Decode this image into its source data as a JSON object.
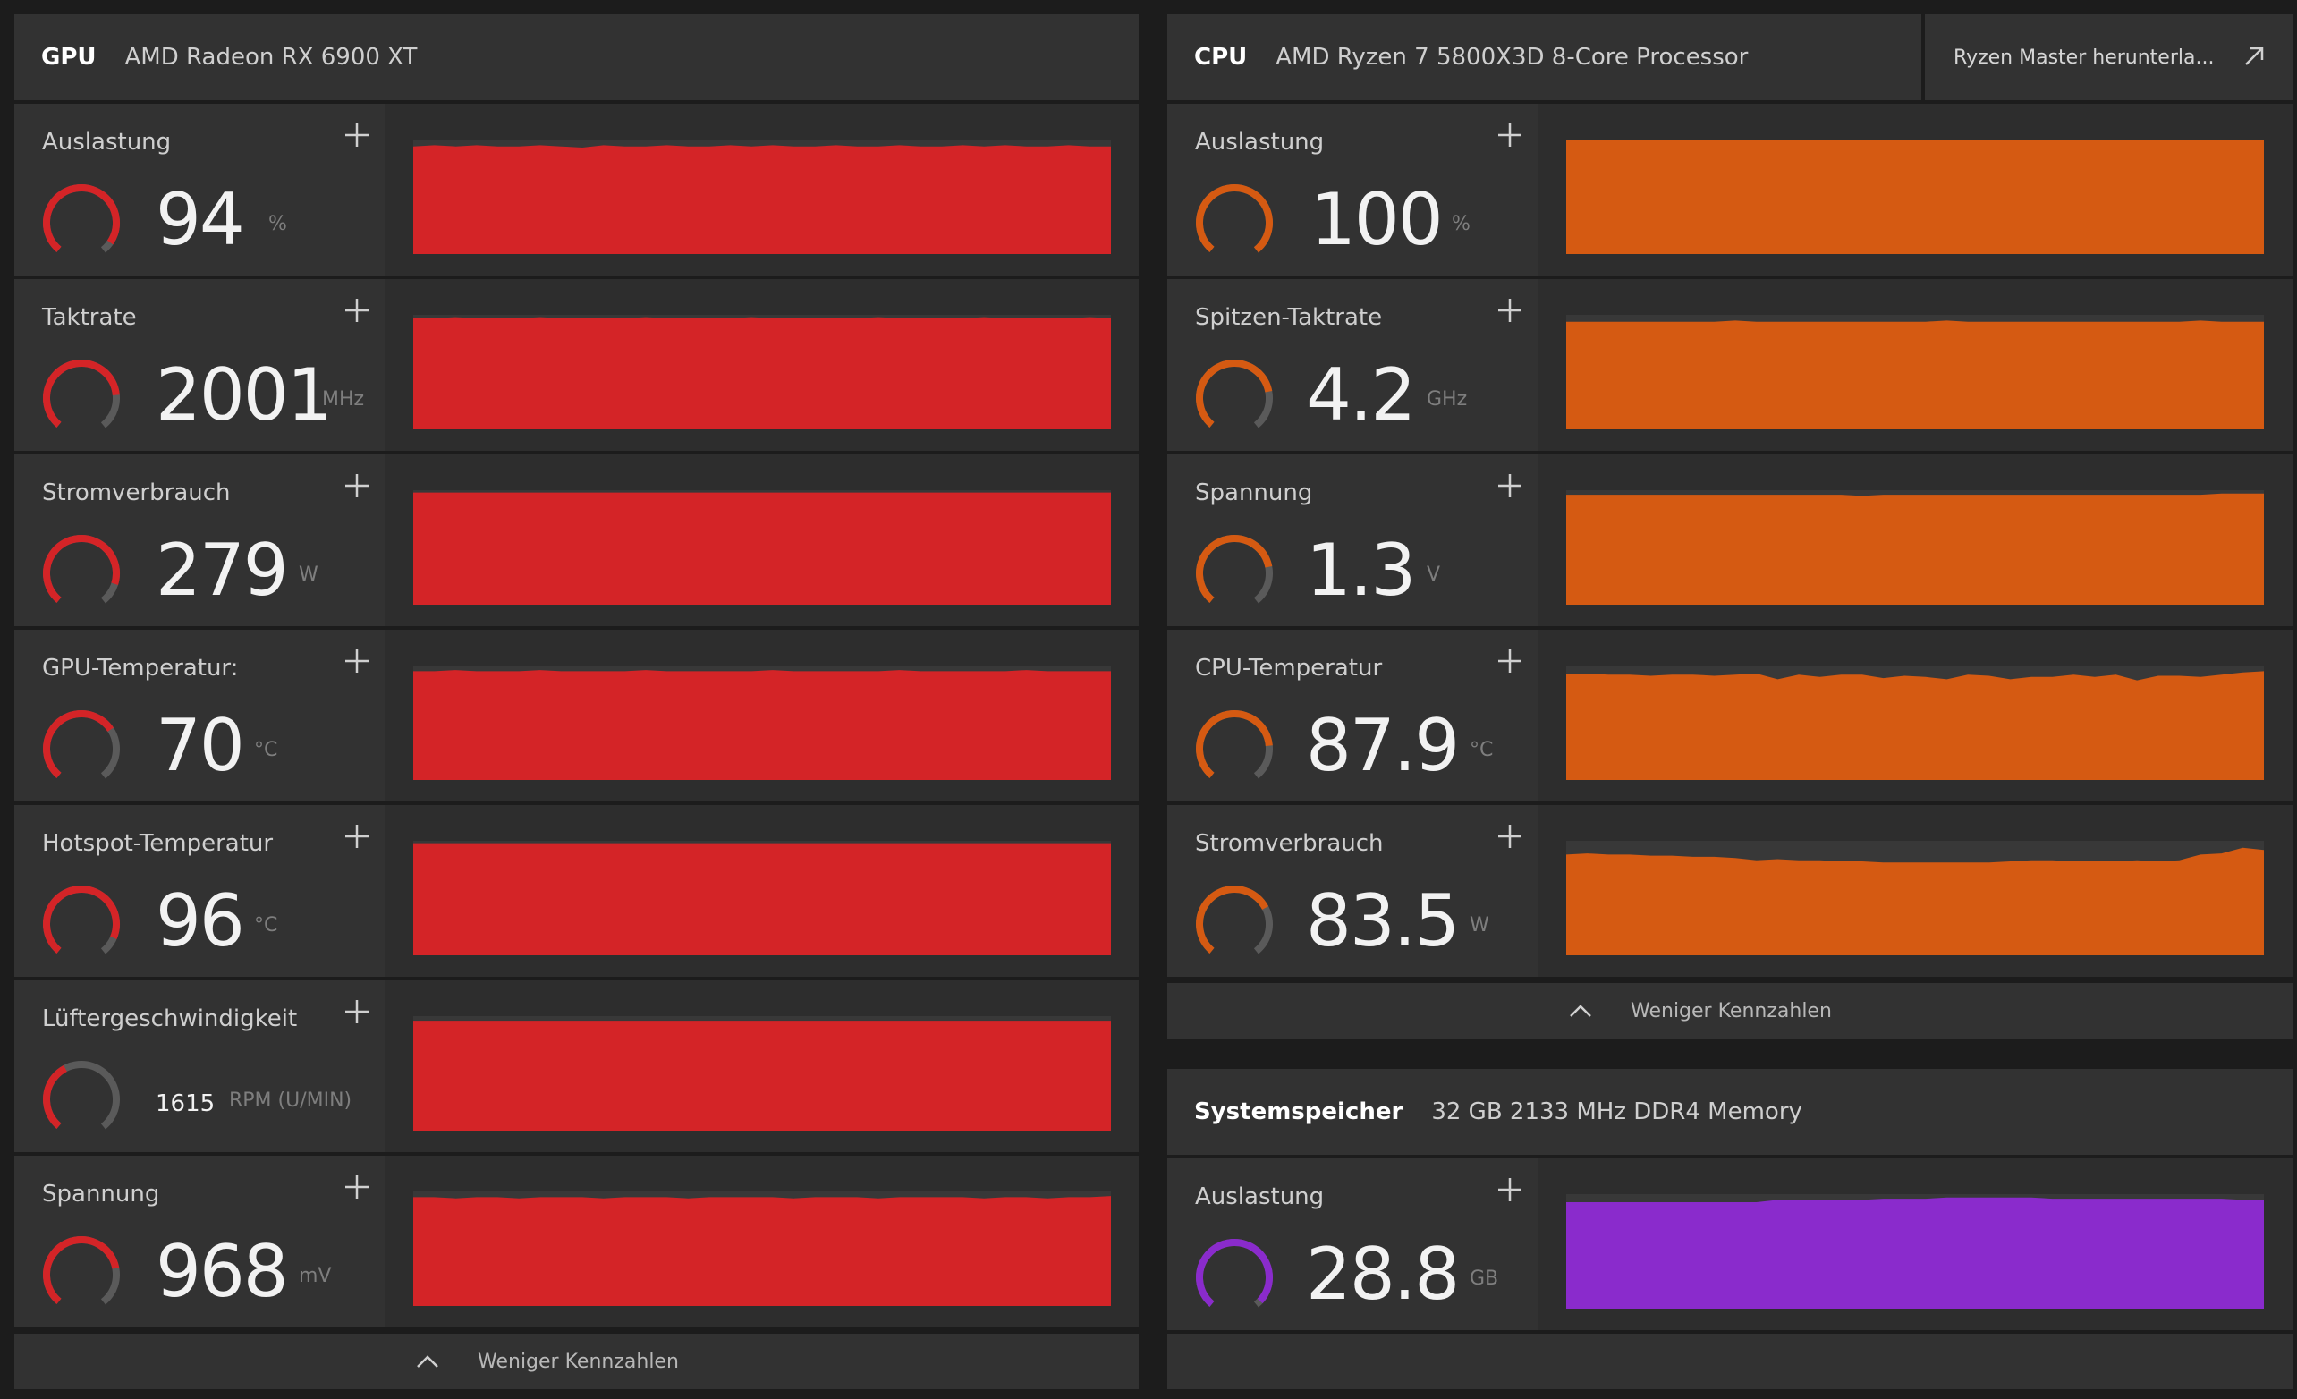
{
  "colors": {
    "gpu": "#d42427",
    "cpu": "#d55a12",
    "memory": "#8a2bcc",
    "track": "#5a5a5a"
  },
  "gpu": {
    "tag": "GPU",
    "name": "AMD Radeon RX 6900 XT",
    "metrics": [
      {
        "label": "Auslastung",
        "value": "94",
        "unit": "%",
        "level": 0.94,
        "history": [
          94,
          95,
          94,
          95,
          94,
          94,
          95,
          94,
          93,
          95,
          94,
          94,
          95,
          94,
          94,
          95,
          94,
          95,
          94,
          94,
          95,
          94,
          94,
          95,
          94,
          94,
          95,
          94,
          95,
          94,
          94,
          95,
          94,
          94
        ]
      },
      {
        "label": "Taktrate",
        "value": "2001",
        "unit": "MHz",
        "level": 0.8,
        "history": [
          97,
          97,
          98,
          97,
          97,
          97,
          98,
          97,
          97,
          97,
          97,
          98,
          97,
          97,
          97,
          97,
          98,
          97,
          97,
          97,
          97,
          97,
          98,
          97,
          97,
          97,
          97,
          98,
          97,
          97,
          97,
          97,
          98,
          97
        ]
      },
      {
        "label": "Stromverbrauch",
        "value": "279",
        "unit": "W",
        "level": 0.88,
        "history": [
          98,
          98,
          98,
          98,
          98,
          98,
          98,
          98,
          98,
          98,
          98,
          98,
          98,
          98,
          98,
          98,
          98,
          98,
          98,
          98,
          98,
          98,
          98,
          98,
          98,
          98,
          98,
          98,
          98,
          98,
          98,
          98,
          98,
          98
        ]
      },
      {
        "label": "GPU-Temperatur:",
        "value": "70",
        "unit": "°C",
        "level": 0.7,
        "history": [
          95,
          95,
          96,
          95,
          95,
          95,
          96,
          95,
          95,
          95,
          95,
          96,
          95,
          95,
          95,
          95,
          95,
          96,
          95,
          95,
          95,
          95,
          95,
          96,
          95,
          95,
          95,
          95,
          95,
          96,
          95,
          95,
          95,
          95
        ]
      },
      {
        "label": "Hotspot-Temperatur",
        "value": "96",
        "unit": "°C",
        "level": 0.9,
        "history": [
          98,
          98,
          98,
          98,
          98,
          98,
          98,
          98,
          98,
          98,
          98,
          98,
          98,
          98,
          98,
          98,
          98,
          98,
          98,
          98,
          98,
          98,
          98,
          98,
          98,
          98,
          98,
          98,
          98,
          98,
          98,
          98,
          98,
          98
        ]
      },
      {
        "label": "Lüftergeschwindigkeit",
        "value": "1615",
        "unit": "RPM (U/MIN)",
        "level": 0.4,
        "history": [
          96,
          96,
          96,
          96,
          96,
          96,
          96,
          96,
          96,
          96,
          96,
          96,
          96,
          96,
          96,
          96,
          96,
          96,
          96,
          96,
          96,
          96,
          96,
          96,
          96,
          96,
          96,
          96,
          96,
          96,
          96,
          96,
          96,
          96
        ]
      },
      {
        "label": "Spannung",
        "value": "968",
        "unit": "mV",
        "level": 0.78,
        "history": [
          95,
          95,
          94,
          95,
          95,
          94,
          95,
          95,
          95,
          94,
          95,
          95,
          95,
          94,
          95,
          95,
          95,
          95,
          94,
          95,
          95,
          95,
          94,
          95,
          95,
          95,
          95,
          94,
          95,
          95,
          94,
          95,
          95,
          96
        ]
      }
    ],
    "footer": "Weniger Kennzahlen"
  },
  "cpu": {
    "tag": "CPU",
    "name": "AMD Ryzen 7 5800X3D 8-Core Processor",
    "external_link": "Ryzen Master herunterla...",
    "metrics": [
      {
        "label": "Auslastung",
        "value": "100",
        "unit": "%",
        "level": 1.0,
        "history": [
          100,
          100,
          100,
          100,
          100,
          100,
          100,
          100,
          100,
          100,
          100,
          100,
          100,
          100,
          100,
          100,
          100,
          100,
          100,
          100,
          100,
          100,
          100,
          100,
          100,
          100,
          100,
          100,
          100,
          100,
          100,
          100,
          100,
          100
        ]
      },
      {
        "label": "Spitzen-Taktrate",
        "value": "4.2",
        "unit": "GHz",
        "level": 0.78,
        "history": [
          94,
          94,
          94,
          94,
          94,
          94,
          94,
          94,
          95,
          94,
          94,
          94,
          94,
          94,
          94,
          94,
          94,
          94,
          95,
          94,
          94,
          94,
          94,
          94,
          94,
          94,
          94,
          94,
          94,
          94,
          95,
          94,
          94,
          94
        ]
      },
      {
        "label": "Spannung",
        "value": "1.3",
        "unit": "V",
        "level": 0.78,
        "history": [
          96,
          96,
          96,
          96,
          96,
          96,
          96,
          96,
          96,
          96,
          96,
          96,
          96,
          96,
          95,
          96,
          96,
          96,
          96,
          96,
          96,
          96,
          96,
          96,
          96,
          96,
          96,
          96,
          96,
          96,
          96,
          97,
          97,
          97
        ]
      },
      {
        "label": "CPU-Temperatur",
        "value": "87.9",
        "unit": "°C",
        "level": 0.8,
        "history": [
          93,
          93,
          92,
          92,
          91,
          92,
          92,
          91,
          92,
          93,
          88,
          92,
          90,
          92,
          92,
          89,
          91,
          90,
          88,
          92,
          91,
          88,
          90,
          90,
          92,
          90,
          92,
          87,
          91,
          91,
          90,
          92,
          94,
          95
        ]
      },
      {
        "label": "Stromverbrauch",
        "value": "83.5",
        "unit": "W",
        "level": 0.72,
        "history": [
          88,
          89,
          88,
          88,
          87,
          87,
          86,
          86,
          85,
          83,
          84,
          83,
          83,
          82,
          82,
          81,
          81,
          81,
          81,
          81,
          81,
          82,
          83,
          83,
          82,
          82,
          82,
          83,
          82,
          83,
          88,
          89,
          94,
          92
        ]
      }
    ],
    "footer": "Weniger Kennzahlen"
  },
  "memory": {
    "tag": "Systemspeicher",
    "name": "32 GB 2133 MHz DDR4 Memory",
    "metrics": [
      {
        "label": "Auslastung",
        "value": "28.8",
        "unit": "GB",
        "level": 0.97,
        "history": [
          93,
          93,
          93,
          93,
          93,
          93,
          93,
          93,
          93,
          93,
          95,
          95,
          95,
          95,
          95,
          96,
          96,
          96,
          97,
          97,
          97,
          97,
          97,
          96,
          96,
          96,
          96,
          96,
          96,
          96,
          96,
          96,
          95,
          95
        ]
      }
    ]
  }
}
